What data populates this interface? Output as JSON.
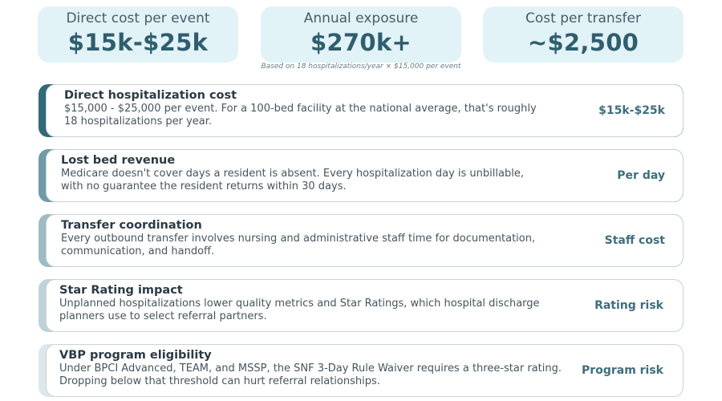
{
  "stats": [
    {
      "label": "Direct cost per event",
      "value": "$15k-$25k"
    },
    {
      "label": "Annual exposure",
      "value": "$270k+"
    },
    {
      "label": "Cost per transfer",
      "value": "~$2,500"
    }
  ],
  "footnote": "Based on 18 hospitalizations/year × $15,000 per event",
  "cards": [
    {
      "title": "Direct hospitalization cost",
      "desc": "$15,000 - $25,000 per event. For a 100-bed facility at the national average, that's roughly 18 hospitalizations per year.",
      "tag": "$15k-$25k",
      "accent": "#2f6b78"
    },
    {
      "title": "Lost bed revenue",
      "desc": "Medicare doesn't cover days a resident is absent. Every hospitalization day is unbillable, with no guarantee the resident returns within 30 days.",
      "tag": "Per day",
      "accent": "#6f9ba6"
    },
    {
      "title": "Transfer coordination",
      "desc": "Every outbound transfer involves nursing and administrative staff time for documentation, communication, and handoff.",
      "tag": "Staff cost",
      "accent": "#9dbcc4"
    },
    {
      "title": "Star Rating impact",
      "desc": "Unplanned hospitalizations lower quality metrics and Star Ratings, which hospital discharge planners use to select referral partners.",
      "tag": "Rating risk",
      "accent": "#bed3d9"
    },
    {
      "title": "VBP program eligibility",
      "desc": "Under BPCI Advanced, TEAM, and MSSP, the SNF 3-Day Rule Waiver requires a three-star rating. Dropping below that threshold can hurt referral relationships.",
      "tag": "Program risk",
      "accent": "#dde8ec"
    }
  ]
}
